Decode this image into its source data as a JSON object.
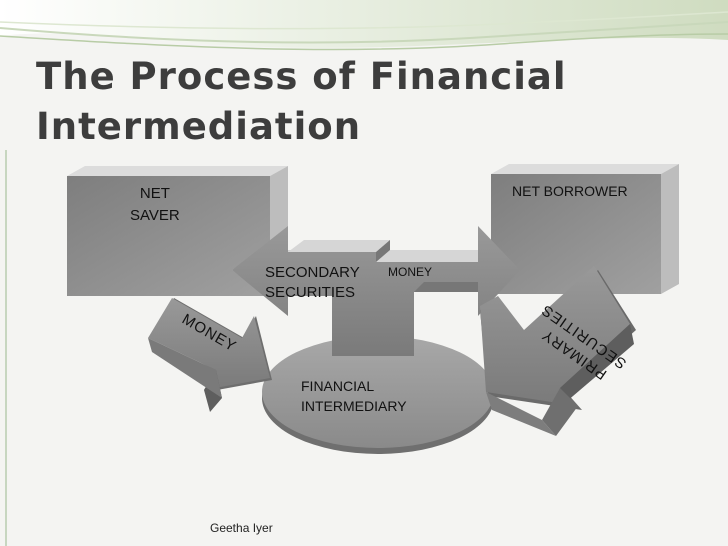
{
  "slide": {
    "title_line1": "The Process of Financial",
    "title_line2": "Intermediation",
    "footer": "Geetha Iyer"
  },
  "diagram": {
    "net_saver": "NET\nSAVER",
    "net_borrower": "NET BORROWER",
    "secondary_securities_line1": "SECONDARY",
    "secondary_securities_line2": "SECURITIES",
    "money_top": "MONEY",
    "money_left": "MONEY",
    "primary_securities": "PRIMARY\nSECURITIES",
    "financial_intermediary_line1": "FINANCIAL",
    "financial_intermediary_line2": "INTERMEDIARY"
  },
  "colors": {
    "box_fill": "#8c8c8c",
    "box_top": "#d9d9d9",
    "arrow_fill": "#8a8a8a",
    "ellipse_fill": "#9c9c9c",
    "title": "#3d3d3d"
  }
}
